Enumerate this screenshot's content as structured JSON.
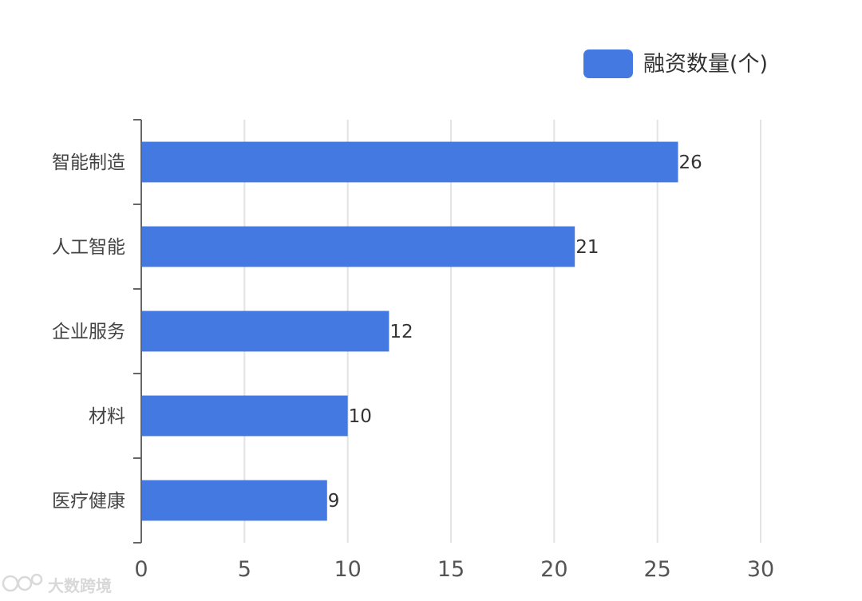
{
  "chart_data": {
    "type": "bar",
    "orientation": "horizontal",
    "categories": [
      "智能制造",
      "人工智能",
      "企业服务",
      "材料",
      "医疗健康"
    ],
    "series": [
      {
        "name": "融资数量(个)",
        "values": [
          26,
          21,
          12,
          10,
          9
        ]
      }
    ],
    "xlim": [
      0,
      30
    ],
    "x_ticks": [
      "0",
      "5",
      "10",
      "15",
      "20",
      "25",
      "30"
    ],
    "grid": true,
    "legend_position": "top-right",
    "data_labels": true,
    "bar_color": "#4479E1",
    "grid_color": "#E3E3E3",
    "axis_color": "#666666"
  },
  "watermark": {
    "text": "大数跨境"
  }
}
